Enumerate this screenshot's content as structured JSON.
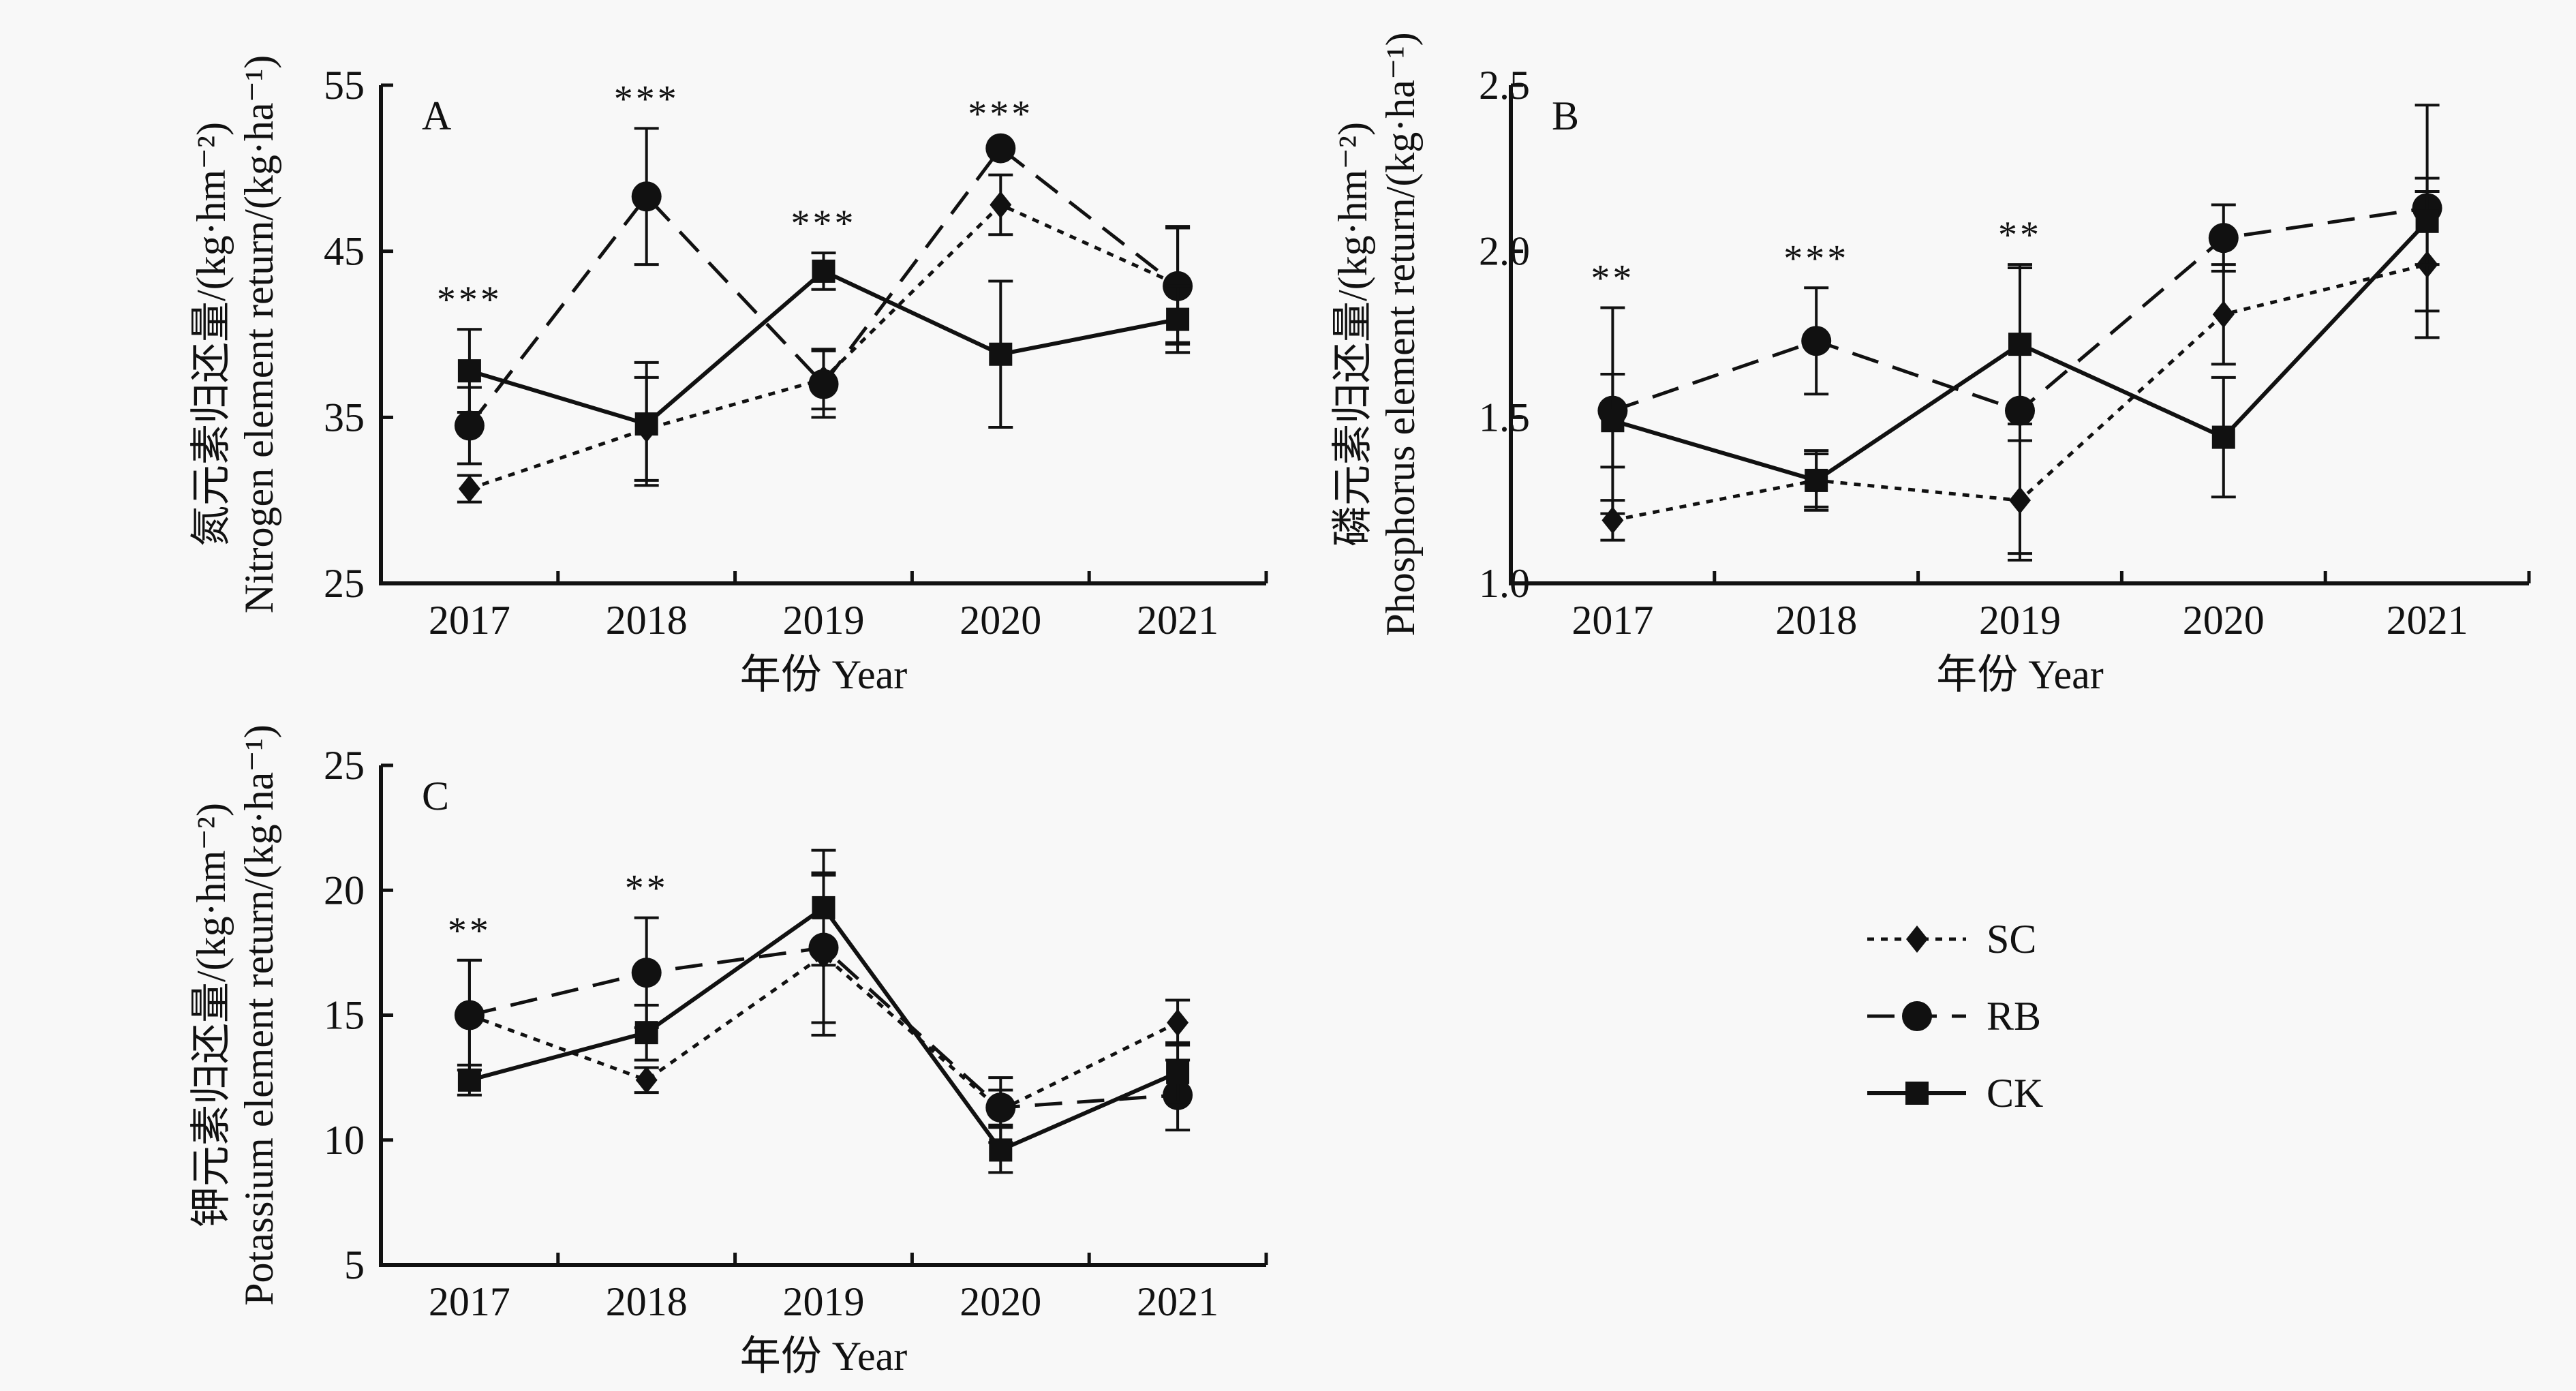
{
  "chart_data": [
    {
      "type": "line",
      "panel": "A",
      "title": "",
      "xlabel": "年份 Year",
      "ylabel_cn": "氮元素归还量/(kg·hm⁻²)",
      "ylabel_en": "Nitrogen element return/(kg·ha⁻¹)",
      "categories": [
        "2017",
        "2018",
        "2019",
        "2020",
        "2021"
      ],
      "ylim": [
        25,
        55
      ],
      "yticks": [
        "25",
        "35",
        "45",
        "55"
      ],
      "significance": [
        "***",
        "***",
        "***",
        "***",
        ""
      ],
      "series": [
        {
          "name": "SC",
          "values": [
            30.7,
            34.3,
            37.3,
            47.8,
            43.0
          ],
          "errors": [
            0.8,
            3.1,
            1.8,
            1.8,
            3.5
          ]
        },
        {
          "name": "RB",
          "values": [
            34.5,
            48.3,
            37.0,
            51.2,
            42.9
          ],
          "errors": [
            2.3,
            4.1,
            2.0,
            0.3,
            3.5
          ]
        },
        {
          "name": "CK",
          "values": [
            37.8,
            34.6,
            43.8,
            38.8,
            40.9
          ],
          "errors": [
            2.5,
            3.7,
            1.1,
            4.4,
            2.0
          ]
        }
      ]
    },
    {
      "type": "line",
      "panel": "B",
      "title": "",
      "xlabel": "年份 Year",
      "ylabel_cn": "磷元素归还量/(kg·hm⁻²)",
      "ylabel_en": "Phosphorus element return/(kg·ha⁻¹)",
      "categories": [
        "2017",
        "2018",
        "2019",
        "2020",
        "2021"
      ],
      "ylim": [
        1.0,
        2.5
      ],
      "yticks": [
        "1.0",
        "1.5",
        "2.0",
        "2.5"
      ],
      "significance": [
        "**",
        "***",
        "**",
        "",
        ""
      ],
      "series": [
        {
          "name": "SC",
          "values": [
            1.19,
            1.31,
            1.25,
            1.81,
            1.96
          ],
          "errors": [
            0.06,
            0.08,
            0.18,
            0.15,
            0.22
          ]
        },
        {
          "name": "RB",
          "values": [
            1.52,
            1.73,
            1.52,
            2.04,
            2.13
          ],
          "errors": [
            0.31,
            0.16,
            0.43,
            0.1,
            0.31
          ]
        },
        {
          "name": "CK",
          "values": [
            1.49,
            1.31,
            1.72,
            1.44,
            2.09
          ],
          "errors": [
            0.14,
            0.09,
            0.24,
            0.18,
            0.13
          ]
        }
      ]
    },
    {
      "type": "line",
      "panel": "C",
      "title": "",
      "xlabel": "年份 Year",
      "ylabel_cn": "钾元素归还量/(kg·hm⁻²)",
      "ylabel_en": "Potassium element return/(kg·ha⁻¹)",
      "categories": [
        "2017",
        "2018",
        "2019",
        "2020",
        "2021"
      ],
      "ylim": [
        5,
        25
      ],
      "yticks": [
        "5",
        "10",
        "15",
        "20",
        "25"
      ],
      "significance": [
        "**",
        "**",
        "",
        "",
        ""
      ],
      "series": [
        {
          "name": "SC",
          "values": [
            15.0,
            12.4,
            17.4,
            11.2,
            14.7
          ],
          "errors": [
            2.2,
            0.5,
            3.2,
            1.3,
            0.9
          ]
        },
        {
          "name": "RB",
          "values": [
            15.0,
            16.7,
            17.7,
            11.3,
            11.8
          ],
          "errors": [
            2.2,
            2.2,
            3.0,
            0.7,
            1.4
          ]
        },
        {
          "name": "CK",
          "values": [
            12.4,
            14.3,
            19.3,
            9.6,
            12.7
          ],
          "errors": [
            0.6,
            1.1,
            2.3,
            0.9,
            1.2
          ]
        }
      ]
    }
  ],
  "legend": {
    "position": "right-middle",
    "items": [
      {
        "name": "SC",
        "line": "dotted",
        "marker": "diamond"
      },
      {
        "name": "RB",
        "line": "dashed",
        "marker": "circle"
      },
      {
        "name": "CK",
        "line": "solid",
        "marker": "square"
      }
    ]
  }
}
